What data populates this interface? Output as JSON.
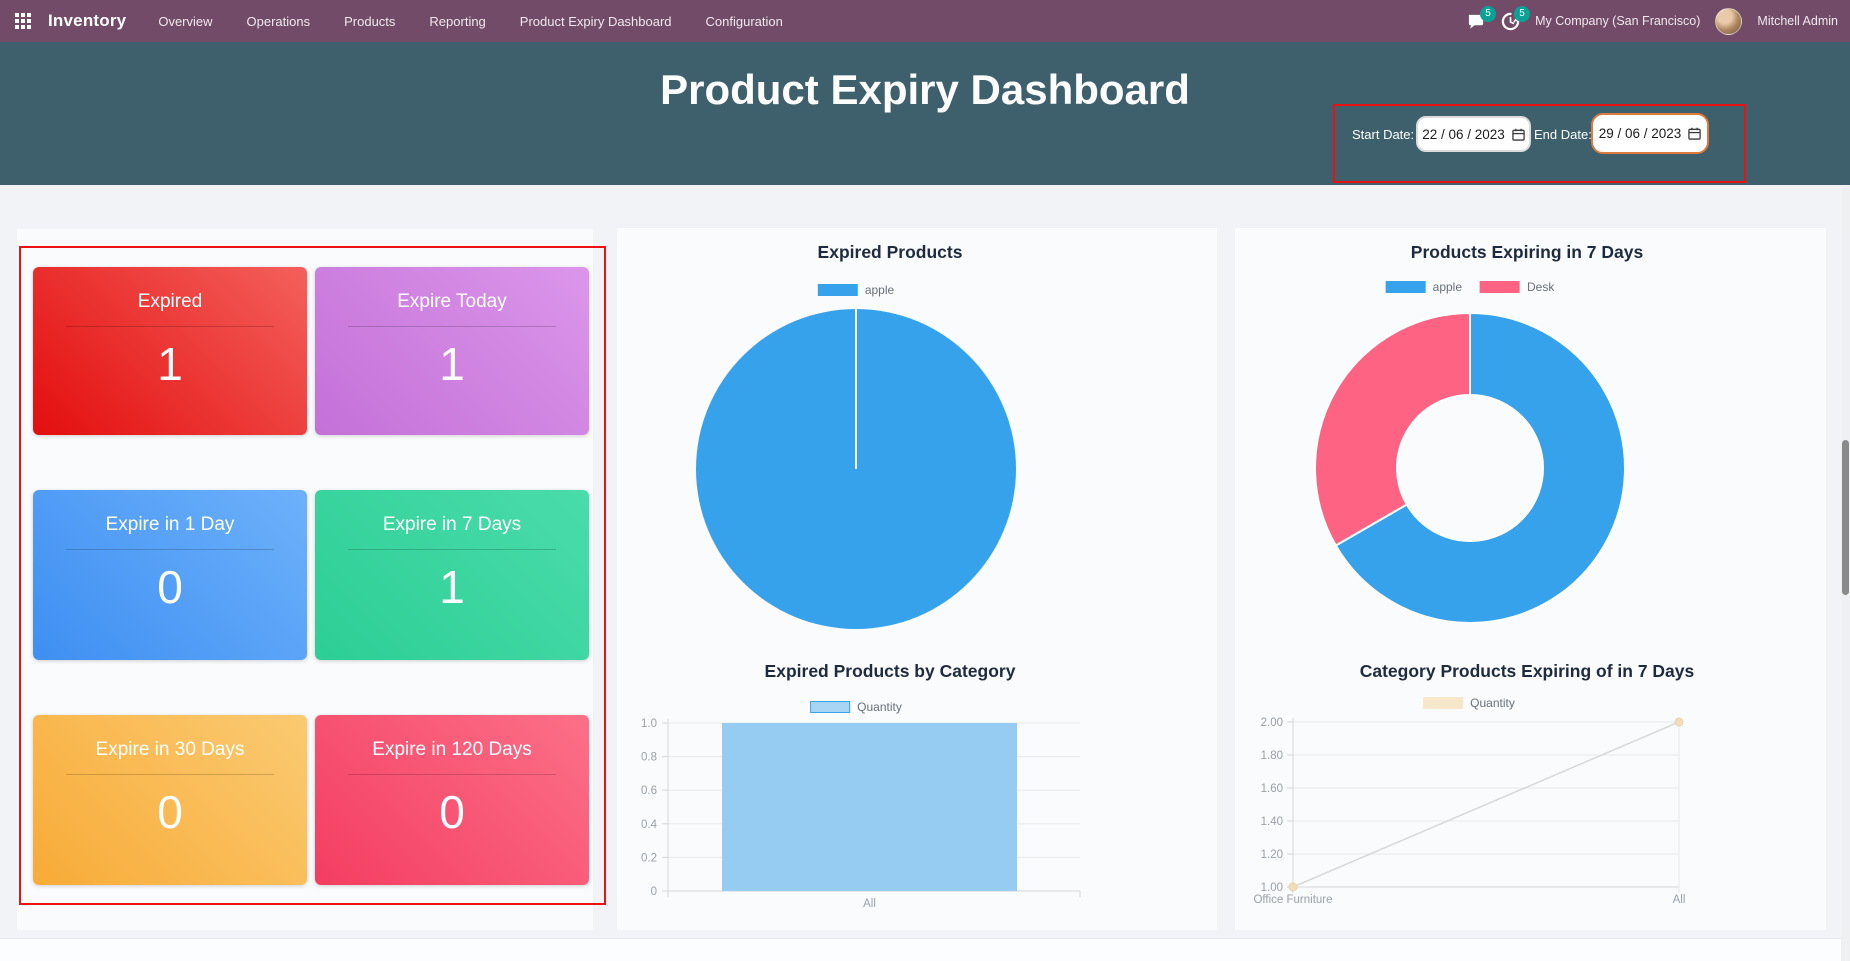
{
  "nav": {
    "app_name": "Inventory",
    "menu_items": [
      "Overview",
      "Operations",
      "Products",
      "Reporting",
      "Product Expiry Dashboard",
      "Configuration"
    ],
    "messages_badge": "5",
    "activities_badge": "5",
    "company": "My Company (San Francisco)",
    "user_name": "Mitchell Admin",
    "bar_color": "#714B67",
    "badge_color": "#0aa296"
  },
  "header": {
    "title": "Product Expiry Dashboard",
    "bg_color": "#3d606c",
    "start_date": {
      "label": "Start Date:",
      "value": "22 / 06 / 2023"
    },
    "end_date": {
      "label": "End Date:",
      "value": "29 / 06 / 2023"
    }
  },
  "annotation_color": "#ee1111",
  "summary_tiles": [
    {
      "label": "Expired",
      "value": "1",
      "color_from": "#f4605c",
      "color_to": "#e30e0e"
    },
    {
      "label": "Expire Today",
      "value": "1",
      "color_from": "#db96ea",
      "color_to": "#c470d8"
    },
    {
      "label": "Expire in 1 Day",
      "value": "0",
      "color_from": "#6db1fb",
      "color_to": "#3e8ff2"
    },
    {
      "label": "Expire in 7 Days",
      "value": "1",
      "color_from": "#4adcab",
      "color_to": "#2dce96"
    },
    {
      "label": "Expire in 30 Days",
      "value": "0",
      "color_from": "#fbca72",
      "color_to": "#f8ab37"
    },
    {
      "label": "Expire in 120 Days",
      "value": "0",
      "color_from": "#fc7088",
      "color_to": "#f43d62"
    }
  ],
  "chart_data": [
    {
      "type": "pie",
      "title": "Expired Products",
      "labels": [
        "apple"
      ],
      "values": [
        1
      ],
      "colors": [
        "#36A2EB"
      ],
      "legend_position": "top",
      "legend": [
        {
          "label": "apple",
          "fill": "#36A2EB"
        }
      ]
    },
    {
      "type": "bar",
      "title": "Expired Products by Category",
      "categories": [
        "All"
      ],
      "series": [
        {
          "name": "Quantity",
          "values": [
            1
          ]
        }
      ],
      "ylim": [
        0,
        1
      ],
      "yticks": [
        "1.0",
        "0.8",
        "0.6",
        "0.4",
        "0.2",
        "0"
      ],
      "grid": true,
      "bar_fill": "#96ccf1",
      "bar_border": "#5fb0e8",
      "legend_position": "top",
      "legend": [
        {
          "label": "Quantity",
          "fill": "#a9d5f5",
          "border": "#36A2EB"
        }
      ]
    },
    {
      "type": "doughnut",
      "title": "Products Expiring in 7 Days",
      "labels": [
        "apple",
        "Desk"
      ],
      "values": [
        2,
        1
      ],
      "colors": [
        "#36A2EB",
        "#FF6384"
      ],
      "legend_position": "top",
      "legend": [
        {
          "label": "apple",
          "fill": "#36A2EB"
        },
        {
          "label": "Desk",
          "fill": "#FF6384"
        }
      ]
    },
    {
      "type": "line",
      "title": "Category Products Expiring of in 7 Days",
      "categories": [
        "Office Furniture",
        "All"
      ],
      "series": [
        {
          "name": "Quantity",
          "values": [
            1,
            2
          ]
        }
      ],
      "ylim": [
        1,
        2
      ],
      "yticks": [
        "2.00",
        "1.80",
        "1.60",
        "1.40",
        "1.20",
        "1.00"
      ],
      "grid": true,
      "line_color": "#d8d8da",
      "point_fill": "#f2ddbb",
      "point_border": "#e9d2a9",
      "legend_position": "top",
      "legend": [
        {
          "label": "Quantity",
          "fill": "#f7e7ca"
        }
      ]
    }
  ]
}
